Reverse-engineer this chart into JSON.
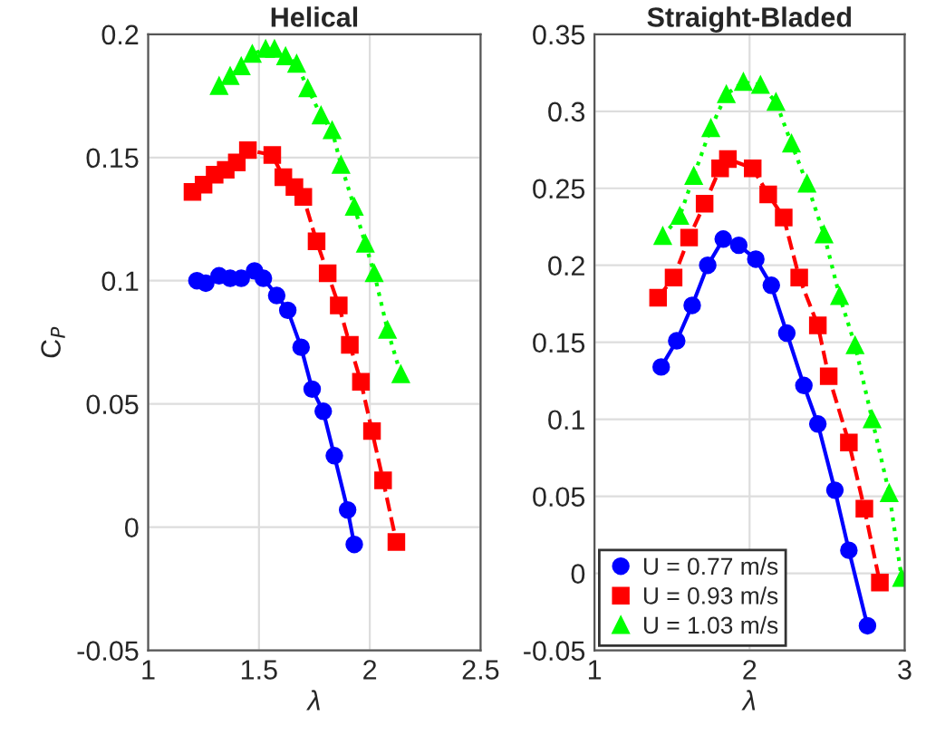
{
  "chart_data": [
    {
      "type": "line",
      "title": "Helical",
      "xlabel": "λ",
      "ylabel": "C$_{P}$",
      "xlim": [
        1,
        2.5
      ],
      "xticks": [
        1,
        1.5,
        2,
        2.5
      ],
      "ylim": [
        -0.05,
        0.2
      ],
      "yticks": [
        -0.05,
        0,
        0.05,
        0.1,
        0.15,
        0.2
      ],
      "grid": true,
      "legend": false,
      "series": [
        {
          "color": "#0000ff",
          "marker": "circle",
          "line_style": "solid",
          "x": [
            1.22,
            1.26,
            1.32,
            1.37,
            1.42,
            1.48,
            1.52,
            1.58,
            1.63,
            1.69,
            1.74,
            1.79,
            1.84,
            1.9,
            1.93
          ],
          "values": [
            0.1,
            0.099,
            0.102,
            0.101,
            0.101,
            0.104,
            0.101,
            0.094,
            0.088,
            0.073,
            0.056,
            0.047,
            0.029,
            0.007,
            -0.007
          ]
        },
        {
          "color": "#ff0000",
          "marker": "square",
          "line_style": "dashed",
          "x": [
            1.2,
            1.25,
            1.3,
            1.35,
            1.4,
            1.45,
            1.56,
            1.61,
            1.66,
            1.7,
            1.76,
            1.81,
            1.86,
            1.91,
            1.96,
            2.01,
            2.06,
            2.12
          ],
          "values": [
            0.136,
            0.139,
            0.143,
            0.145,
            0.148,
            0.153,
            0.151,
            0.142,
            0.138,
            0.134,
            0.116,
            0.103,
            0.09,
            0.074,
            0.059,
            0.039,
            0.019,
            -0.006
          ]
        },
        {
          "color": "#00ff00",
          "marker": "triangle",
          "line_style": "dotted",
          "x": [
            1.32,
            1.37,
            1.42,
            1.47,
            1.53,
            1.57,
            1.62,
            1.67,
            1.72,
            1.78,
            1.83,
            1.87,
            1.93,
            1.98,
            2.02,
            2.08,
            2.14
          ],
          "values": [
            0.179,
            0.183,
            0.187,
            0.192,
            0.194,
            0.194,
            0.191,
            0.188,
            0.178,
            0.167,
            0.161,
            0.147,
            0.13,
            0.115,
            0.103,
            0.08,
            0.062
          ]
        }
      ]
    },
    {
      "type": "line",
      "title": "Straight-Bladed",
      "xlabel": "λ",
      "xlim": [
        1,
        3
      ],
      "xticks": [
        1,
        2,
        3
      ],
      "ylim": [
        -0.05,
        0.35
      ],
      "yticks": [
        -0.05,
        0,
        0.05,
        0.1,
        0.15,
        0.2,
        0.25,
        0.3,
        0.35
      ],
      "grid": true,
      "legend": "lower left",
      "series": [
        {
          "name": "U = 0.77 m/s",
          "color": "#0000ff",
          "marker": "circle",
          "line_style": "solid",
          "x": [
            1.43,
            1.53,
            1.63,
            1.73,
            1.83,
            1.93,
            2.04,
            2.14,
            2.24,
            2.35,
            2.44,
            2.55,
            2.64,
            2.76
          ],
          "values": [
            0.134,
            0.151,
            0.174,
            0.2,
            0.217,
            0.213,
            0.204,
            0.187,
            0.156,
            0.122,
            0.097,
            0.054,
            0.015,
            -0.034
          ]
        },
        {
          "name": "U = 0.93 m/s",
          "color": "#ff0000",
          "marker": "square",
          "line_style": "dashed",
          "x": [
            1.41,
            1.51,
            1.61,
            1.71,
            1.81,
            1.86,
            2.02,
            2.12,
            2.22,
            2.32,
            2.44,
            2.51,
            2.64,
            2.74,
            2.84
          ],
          "values": [
            0.179,
            0.192,
            0.218,
            0.24,
            0.263,
            0.269,
            0.263,
            0.246,
            0.231,
            0.192,
            0.161,
            0.128,
            0.085,
            0.042,
            -0.006
          ]
        },
        {
          "name": "U = 1.03 m/s",
          "color": "#00ff00",
          "marker": "triangle",
          "line_style": "dotted",
          "x": [
            1.44,
            1.55,
            1.64,
            1.75,
            1.85,
            1.96,
            2.07,
            2.17,
            2.27,
            2.37,
            2.48,
            2.58,
            2.68,
            2.79,
            2.9,
            2.98
          ],
          "values": [
            0.219,
            0.232,
            0.258,
            0.289,
            0.311,
            0.319,
            0.317,
            0.306,
            0.279,
            0.253,
            0.22,
            0.18,
            0.148,
            0.1,
            0.052,
            -0.003
          ]
        }
      ]
    }
  ]
}
